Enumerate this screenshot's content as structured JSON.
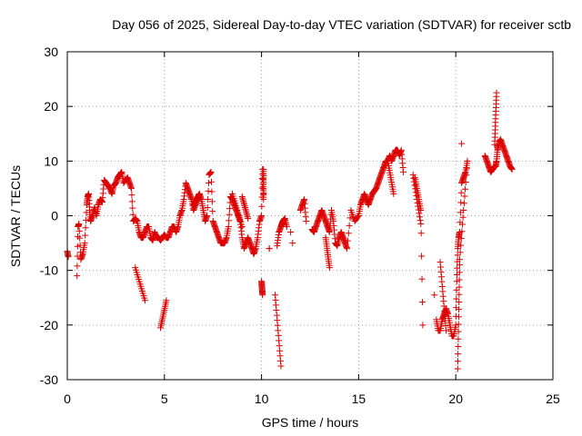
{
  "chart_data": {
    "type": "scatter",
    "title": "Day 056 of 2025, Sidereal Day-to-day VTEC variation (SDTVAR) for receiver sctb",
    "xlabel": "GPS time / hours",
    "ylabel": "SDTVAR / TECUs",
    "xlim": [
      0,
      25
    ],
    "ylim": [
      -30,
      30
    ],
    "xticks": [
      "0",
      "5",
      "10",
      "15",
      "20",
      "25"
    ],
    "yticks": [
      "-30",
      "-20",
      "-10",
      "0",
      "10",
      "20",
      "30"
    ],
    "grid": true,
    "marker": "+",
    "color": "#dd0000",
    "series": [
      {
        "name": "sctb",
        "x": [
          0.0,
          0.05,
          0.5,
          0.55,
          0.6,
          0.7,
          0.8,
          0.9,
          1.0,
          1.05,
          1.1,
          1.15,
          1.2,
          1.3,
          1.4,
          1.5,
          1.6,
          1.7,
          1.8,
          1.9,
          2.0,
          2.1,
          2.2,
          2.3,
          2.4,
          2.5,
          2.6,
          2.7,
          2.8,
          2.9,
          3.1,
          3.2,
          3.3,
          3.4,
          3.5,
          3.6,
          3.7,
          3.8,
          3.9,
          4.0,
          4.1,
          4.2,
          4.3,
          4.4,
          4.5,
          4.6,
          4.7,
          4.8,
          4.9,
          5.0,
          5.1,
          5.2,
          5.3,
          5.4,
          5.5,
          5.6,
          5.7,
          5.8,
          5.9,
          6.0,
          6.1,
          6.2,
          6.3,
          6.4,
          6.5,
          6.6,
          6.7,
          6.8,
          6.9,
          7.0,
          7.1,
          7.2,
          7.3,
          7.4,
          7.5,
          7.6,
          7.7,
          7.8,
          7.9,
          8.0,
          8.1,
          8.2,
          8.3,
          8.4,
          8.5,
          8.6,
          8.7,
          8.8,
          8.9,
          9.0,
          9.1,
          9.2,
          9.3,
          9.4,
          9.5,
          9.6,
          9.7,
          9.8,
          9.9,
          10.0,
          10.05,
          10.1,
          10.4,
          10.8,
          10.9,
          11.0,
          11.05,
          11.1,
          11.2,
          11.3,
          11.6,
          12.0,
          12.1,
          12.2,
          12.3,
          12.6,
          12.7,
          12.8,
          12.9,
          13.0,
          13.1,
          13.2,
          13.3,
          13.4,
          13.5,
          13.6,
          13.7,
          13.8,
          13.9,
          14.0,
          14.1,
          14.2,
          14.3,
          14.4,
          14.6,
          14.8,
          15.0,
          15.1,
          15.2,
          15.3,
          15.4,
          15.5,
          15.6,
          15.7,
          15.8,
          15.9,
          16.0,
          16.1,
          16.2,
          16.3,
          16.4,
          16.5,
          16.6,
          16.7,
          16.8,
          16.9,
          17.0,
          17.1,
          17.2,
          17.3,
          17.9,
          18.0,
          18.1,
          18.2,
          18.3,
          19.0,
          19.1,
          19.2,
          19.3,
          19.4,
          19.5,
          19.6,
          19.7,
          19.8,
          19.9,
          20.0,
          20.05,
          20.1,
          20.15,
          20.2,
          20.3,
          20.4,
          20.5,
          20.6,
          21.5,
          21.6,
          21.7,
          21.8,
          21.9,
          22.0,
          22.05,
          22.1,
          22.15,
          22.2,
          22.3,
          22.4,
          22.5,
          22.6,
          22.7,
          22.8,
          22.9
        ],
        "y": [
          -6.5,
          -7.5,
          -11,
          -2,
          -1.5,
          -8,
          -7,
          -5,
          2,
          3.5,
          4,
          1,
          -1,
          0,
          1.5,
          0,
          2,
          3,
          2.5,
          6.5,
          6,
          5.5,
          5,
          4,
          5.5,
          6,
          7,
          7.5,
          8,
          6,
          7,
          6,
          5,
          -1,
          -0.5,
          -1,
          -3,
          -4,
          -4,
          -3,
          -2,
          -2,
          -4,
          -4.5,
          -3,
          -4,
          -4,
          -4.5,
          -4,
          -3.5,
          -4,
          -4,
          -3,
          -2,
          -2,
          -3,
          -2,
          0,
          1,
          3,
          6,
          5,
          4,
          3,
          1,
          2,
          3,
          4,
          3,
          1,
          -1,
          0,
          7.5,
          8,
          -1,
          -2,
          -3,
          -4,
          -5,
          -5,
          -5,
          -4,
          -2,
          3.5,
          3,
          2,
          1,
          0,
          -1,
          -4,
          -6,
          -5,
          -4,
          -5,
          -6,
          -7,
          -6,
          -4,
          -1,
          0,
          8.5,
          4,
          -6,
          -5.5,
          -3,
          -2,
          -1.5,
          -1,
          -0.5,
          -2,
          -5,
          1,
          2,
          3,
          -1,
          -2.5,
          -3,
          -2,
          -1,
          0,
          1,
          0,
          -1,
          -2,
          -3,
          1,
          -1,
          -5,
          -5.5,
          -4,
          -3,
          -4,
          -5,
          -6,
          1,
          -1,
          0,
          2,
          3,
          4,
          3,
          2,
          3,
          4,
          4.5,
          5,
          6,
          7,
          8,
          9,
          10,
          10,
          11,
          10,
          11,
          12,
          12,
          11,
          12,
          8,
          7,
          5,
          3,
          1,
          -20,
          -19,
          -21,
          -21,
          -19,
          -18,
          -17,
          -18,
          -20,
          -22,
          -22,
          -20,
          -12,
          -6,
          -4,
          -3,
          6,
          7,
          8,
          10,
          11,
          10,
          9,
          8,
          8.5,
          9,
          9,
          10,
          12,
          13,
          14,
          13,
          12,
          11,
          10,
          9,
          8.5
        ],
        "streaks": [
          {
            "x0": 3.5,
            "y0": -9.5,
            "x1": 4.0,
            "y1": -15.5
          },
          {
            "x0": 4.8,
            "y0": -20.5,
            "x1": 5.1,
            "y1": -15.5
          },
          {
            "x0": 6.5,
            "y0": 2,
            "x1": 6.8,
            "y1": 4
          },
          {
            "x0": 8.5,
            "y0": 4,
            "x1": 9.0,
            "y1": -2
          },
          {
            "x0": 9.0,
            "y0": 3.5,
            "x1": 9.3,
            "y1": -0.5
          },
          {
            "x0": 10.0,
            "y0": -12,
            "x1": 10.05,
            "y1": -14.5
          },
          {
            "x0": 10.7,
            "y0": -14.5,
            "x1": 11.0,
            "y1": -27.5
          },
          {
            "x0": 10.1,
            "y0": 8.5,
            "x1": 10.1,
            "y1": 3
          },
          {
            "x0": 13.3,
            "y0": -4,
            "x1": 13.5,
            "y1": -9.5
          },
          {
            "x0": 16.5,
            "y0": 10,
            "x1": 16.8,
            "y1": 4
          },
          {
            "x0": 17.8,
            "y0": 7.5,
            "x1": 18.2,
            "y1": -1.5
          },
          {
            "x0": 19.2,
            "y0": -8.5,
            "x1": 19.5,
            "y1": -21
          },
          {
            "x0": 20.1,
            "y0": -28,
            "x1": 20.2,
            "y1": -9
          },
          {
            "x0": 20.2,
            "y0": -8,
            "x1": 20.6,
            "y1": 10
          },
          {
            "x0": 22.0,
            "y0": 13,
            "x1": 22.1,
            "y1": 22.5
          }
        ],
        "outliers": [
          [
            10.4,
            -6
          ],
          [
            11.5,
            -3
          ],
          [
            20.3,
            13.2
          ],
          [
            18.9,
            -14.5
          ]
        ]
      }
    ]
  }
}
